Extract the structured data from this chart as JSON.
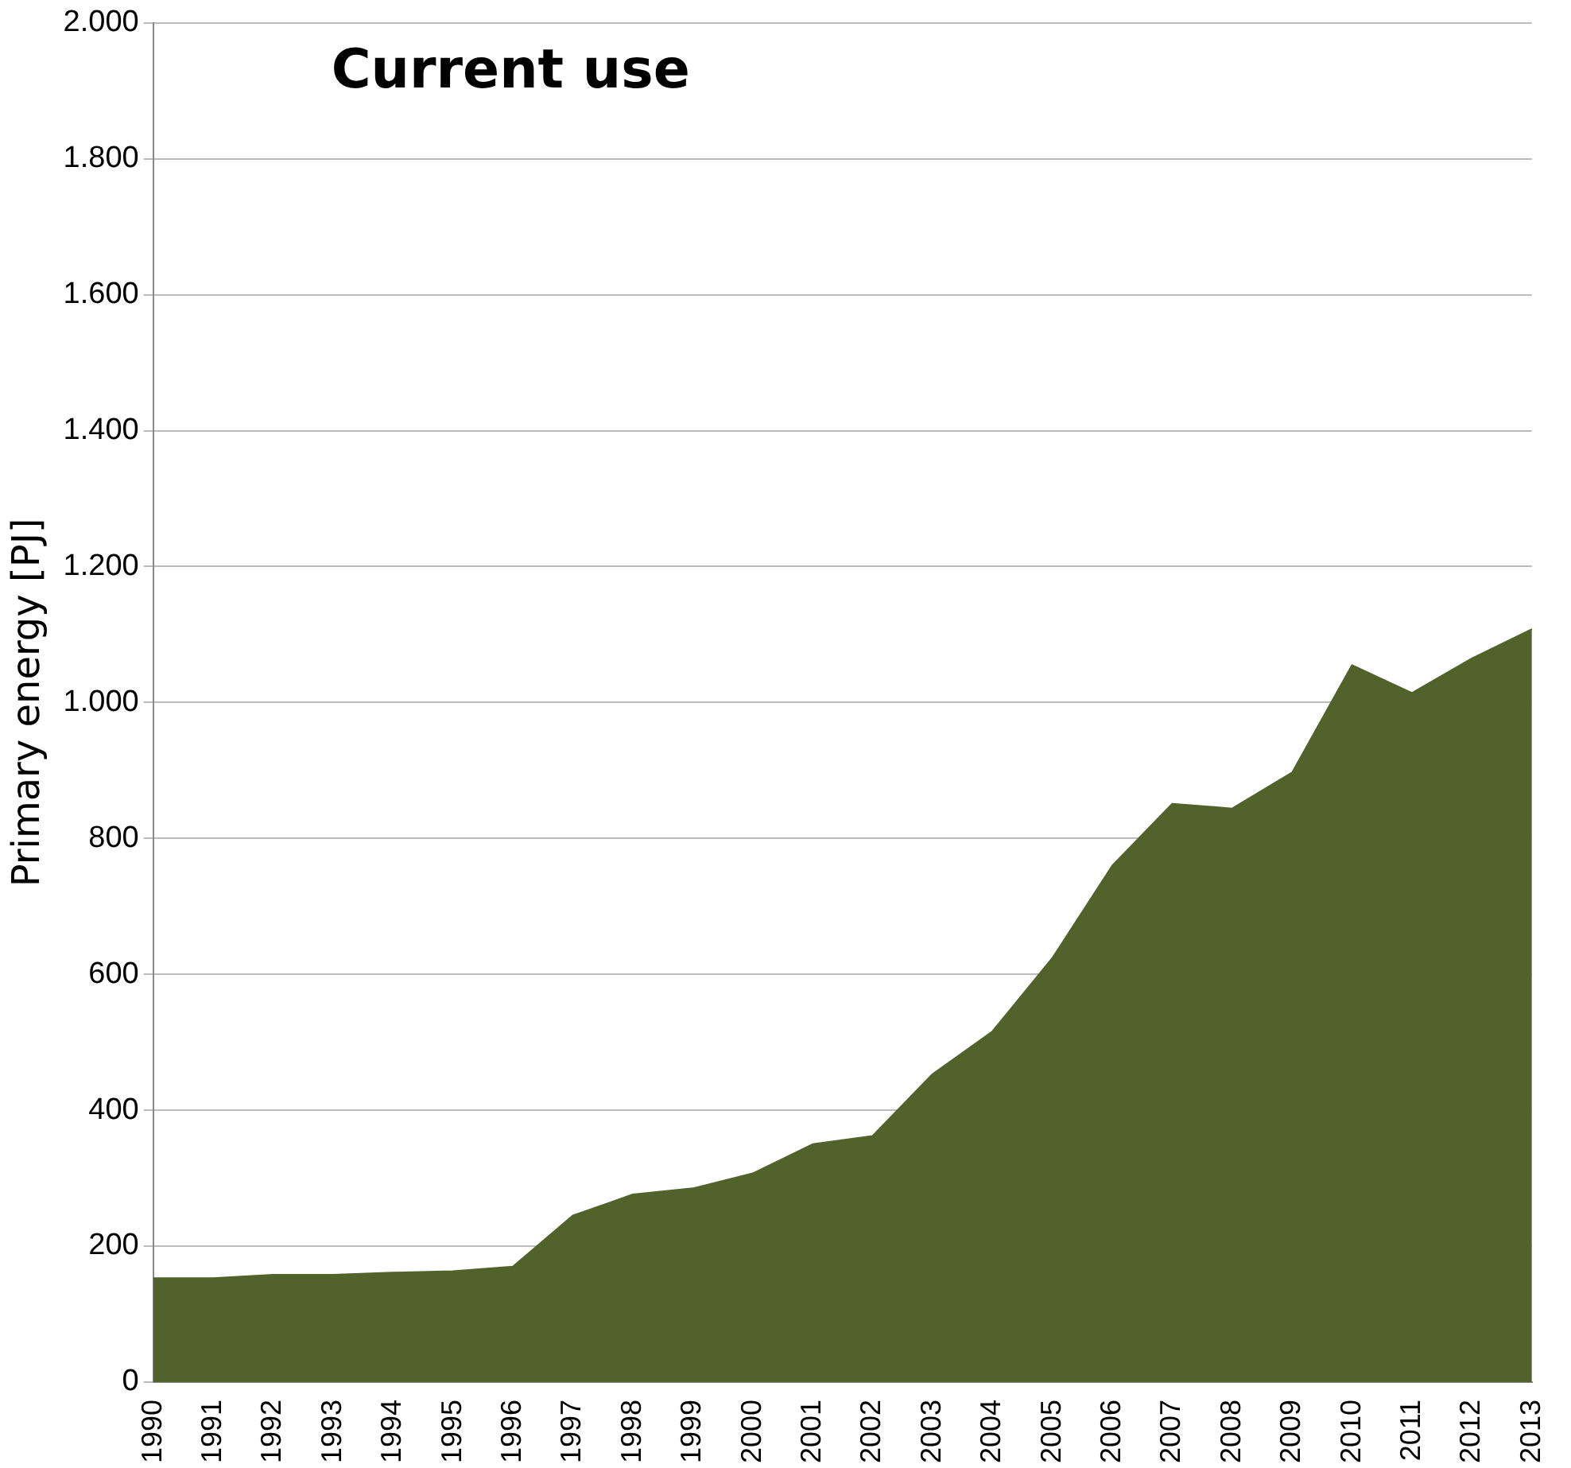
{
  "chart_data": {
    "type": "area",
    "title": "Current use",
    "ylabel": "Primary energy [PJ]",
    "categories": [
      "1990",
      "1991",
      "1992",
      "1993",
      "1994",
      "1995",
      "1996",
      "1997",
      "1998",
      "1999",
      "2000",
      "2001",
      "2002",
      "2003",
      "2004",
      "2005",
      "2006",
      "2007",
      "2008",
      "2009",
      "2010",
      "2011",
      "2012",
      "2013"
    ],
    "series": [
      {
        "color": "#52622b",
        "values": [
          153,
          153,
          158,
          158,
          161,
          163,
          170,
          245,
          276,
          285,
          307,
          350,
          362,
          453,
          516,
          624,
          760,
          851,
          844,
          897,
          1055,
          1014,
          1065,
          1108
        ]
      }
    ],
    "ylim": [
      0,
      2000
    ],
    "yticks": [
      0,
      200,
      400,
      600,
      800,
      {
        "value": 1000,
        "label": "1.000"
      },
      {
        "value": 1200,
        "label": "1.200"
      },
      {
        "value": 1400,
        "label": "1.400"
      },
      {
        "value": 1600,
        "label": "1.600"
      },
      {
        "value": 1800,
        "label": "1.800"
      },
      {
        "value": 2000,
        "label": "2.000"
      }
    ],
    "grid": "y",
    "legend": false
  }
}
